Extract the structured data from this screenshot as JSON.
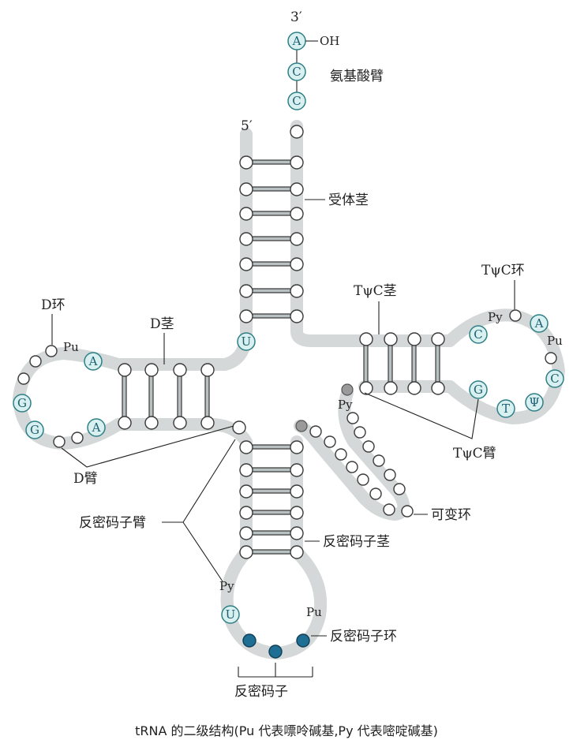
{
  "labels": {
    "three_prime": "3′",
    "five_prime": "5′",
    "oh": "OH",
    "acceptor_arm": "氨基酸臂",
    "acceptor_stem": "受体茎",
    "d_loop": "D环",
    "d_stem": "D茎",
    "d_arm": "D臂",
    "tpsic_loop": "TψC环",
    "tpsic_stem": "TψC茎",
    "tpsic_arm": "TψC臂",
    "variable_loop": "可变环",
    "anticodon_arm": "反密码子臂",
    "anticodon_stem": "反密码子茎",
    "anticodon_loop": "反密码子环",
    "anticodon": "反密码子"
  },
  "bases": {
    "cca": [
      "A",
      "C",
      "C"
    ],
    "u_junction": "U",
    "d_loop_pu": "Pu",
    "d_loop_a_top": "A",
    "d_loop_g_top": "G",
    "d_loop_g_bottom": "G",
    "d_loop_a_bottom": "A",
    "t_loop_py": "Py",
    "t_loop_c": "C",
    "t_loop_a": "A",
    "t_loop_pu": "Pu",
    "t_loop_c2": "C",
    "t_loop_psi": "Ψ",
    "t_loop_t": "T",
    "t_loop_g": "G",
    "t_stem_py": "Py",
    "anticodon_py": "Py",
    "anticodon_u": "U",
    "anticodon_pu": "Pu"
  },
  "caption": "tRNA 的二级结构(Pu 代表嘌呤碱基,Py 代表嘧啶碱基)"
}
